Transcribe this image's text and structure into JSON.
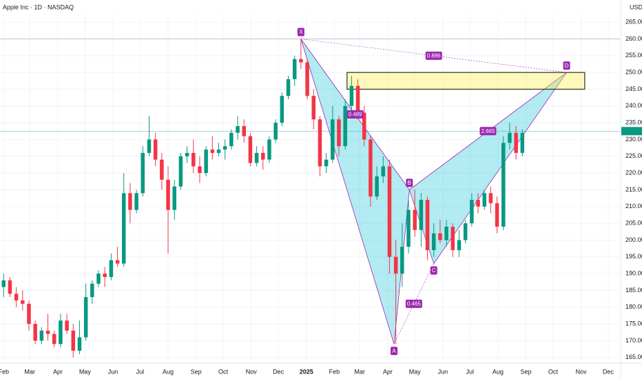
{
  "chart_data": {
    "type": "candlestick",
    "title": "Apple Inc · 1D · NASDAQ",
    "currency": "USD",
    "up_color": "#089981",
    "down_color": "#f23645",
    "grid": true,
    "xlim": [
      -4,
      682
    ],
    "xticks": [
      {
        "value": 0,
        "label": "Feb"
      },
      {
        "value": 29,
        "label": "Mar"
      },
      {
        "value": 60,
        "label": "Apr"
      },
      {
        "value": 90,
        "label": "May"
      },
      {
        "value": 121,
        "label": "Jun"
      },
      {
        "value": 151,
        "label": "Jul"
      },
      {
        "value": 182,
        "label": "Aug"
      },
      {
        "value": 213,
        "label": "Sep"
      },
      {
        "value": 243,
        "label": "Oct"
      },
      {
        "value": 274,
        "label": "Nov"
      },
      {
        "value": 304,
        "label": "Dec"
      },
      {
        "value": 335,
        "label": "2025"
      },
      {
        "value": 366,
        "label": "Feb"
      },
      {
        "value": 394,
        "label": "Mar"
      },
      {
        "value": 425,
        "label": "Apr"
      },
      {
        "value": 455,
        "label": "May"
      },
      {
        "value": 486,
        "label": "Jun"
      },
      {
        "value": 516,
        "label": "Jul"
      },
      {
        "value": 547,
        "label": "Aug"
      },
      {
        "value": 578,
        "label": "Sep"
      },
      {
        "value": 608,
        "label": "Oct"
      },
      {
        "value": 639,
        "label": "Nov"
      },
      {
        "value": 669,
        "label": "Dec"
      }
    ],
    "ylim": [
      163.5,
      267.5
    ],
    "yticks": [
      {
        "value": 165,
        "label": "165.00"
      },
      {
        "value": 170,
        "label": "170.00"
      },
      {
        "value": 175,
        "label": "175.00"
      },
      {
        "value": 180,
        "label": "180.00"
      },
      {
        "value": 185,
        "label": "185.00"
      },
      {
        "value": 190,
        "label": "190.00"
      },
      {
        "value": 195,
        "label": "195.00"
      },
      {
        "value": 200,
        "label": "200.00"
      },
      {
        "value": 205,
        "label": "205.00"
      },
      {
        "value": 210,
        "label": "210.00"
      },
      {
        "value": 215,
        "label": "215.00"
      },
      {
        "value": 220,
        "label": "220.00"
      },
      {
        "value": 225,
        "label": "225.00"
      },
      {
        "value": 230,
        "label": "230.00"
      },
      {
        "value": 235,
        "label": "235.00"
      },
      {
        "value": 240,
        "label": "240.00"
      },
      {
        "value": 245,
        "label": "245.00"
      },
      {
        "value": 250,
        "label": "250.00"
      },
      {
        "value": 255,
        "label": "255.00"
      },
      {
        "value": 260,
        "label": "260.00"
      },
      {
        "value": 265,
        "label": "265.00"
      }
    ],
    "x": [
      0,
      7,
      14,
      21,
      28,
      35,
      42,
      49,
      56,
      63,
      70,
      77,
      84,
      91,
      98,
      105,
      112,
      119,
      126,
      133,
      140,
      147,
      154,
      161,
      168,
      175,
      182,
      189,
      196,
      203,
      210,
      217,
      224,
      231,
      238,
      245,
      252,
      259,
      266,
      273,
      280,
      287,
      294,
      301,
      308,
      315,
      322,
      329,
      336,
      343,
      350,
      357,
      364,
      371,
      378,
      385,
      392,
      399,
      406,
      413,
      420,
      427,
      434,
      441,
      448,
      455,
      462,
      469,
      476,
      483,
      490,
      497,
      504,
      511,
      518,
      525,
      532,
      539,
      546,
      553,
      560,
      567,
      574
    ],
    "open": [
      186,
      188,
      184,
      182,
      181,
      175,
      170,
      173,
      172,
      169,
      176,
      173,
      167,
      171,
      183,
      187,
      190,
      189,
      194,
      193,
      214,
      209,
      214,
      226,
      230,
      224,
      218,
      209,
      216,
      225,
      226,
      222,
      220,
      227,
      226,
      227,
      228,
      232,
      234,
      231,
      223,
      226,
      224,
      230,
      235,
      243,
      248,
      254,
      253,
      243,
      236,
      222,
      224,
      236,
      228,
      240,
      246,
      238,
      230,
      213,
      219,
      222,
      195,
      190,
      198,
      209,
      203,
      212,
      197,
      202,
      200,
      204,
      197,
      200,
      205,
      212,
      210,
      214,
      211,
      204,
      229,
      232,
      226
    ],
    "high": [
      190,
      189,
      186,
      185,
      182,
      176,
      174,
      178,
      173,
      178,
      178,
      175,
      176,
      187,
      188,
      191,
      192,
      196,
      198,
      220,
      217,
      215,
      228,
      237,
      232,
      226,
      222,
      218,
      226,
      228,
      230,
      225,
      228,
      231,
      229,
      230,
      233,
      237,
      236,
      232,
      228,
      228,
      231,
      236,
      244,
      249,
      255,
      260,
      254,
      245,
      237,
      226,
      240,
      237,
      242,
      249,
      248,
      240,
      231,
      222,
      225,
      224,
      200,
      205,
      212,
      215,
      214,
      213,
      205,
      206,
      206,
      205,
      203,
      206,
      214,
      214,
      215,
      216,
      213,
      231,
      235,
      234,
      233
    ],
    "low": [
      183,
      183,
      180,
      179,
      173,
      169,
      169,
      170,
      168,
      168,
      172,
      165,
      166,
      170,
      181,
      186,
      186,
      188,
      192,
      192,
      205,
      208,
      213,
      225,
      222,
      215,
      196,
      206,
      215,
      223,
      220,
      217,
      219,
      224,
      225,
      224,
      227,
      230,
      229,
      222,
      222,
      221,
      223,
      229,
      234,
      242,
      246,
      251,
      242,
      233,
      219,
      220,
      223,
      225,
      227,
      238,
      236,
      228,
      210,
      212,
      217,
      190,
      169,
      186,
      196,
      201,
      198,
      194,
      195,
      199,
      198,
      195,
      195,
      199,
      204,
      208,
      209,
      208,
      202,
      203,
      227,
      224,
      225
    ],
    "close": [
      188,
      184,
      182,
      181,
      175,
      170,
      173,
      172,
      169,
      176,
      173,
      167,
      171,
      183,
      187,
      190,
      189,
      194,
      193,
      214,
      209,
      214,
      226,
      230,
      224,
      218,
      209,
      216,
      225,
      226,
      222,
      220,
      227,
      226,
      227,
      228,
      232,
      234,
      231,
      223,
      226,
      224,
      230,
      235,
      243,
      248,
      254,
      253,
      243,
      236,
      222,
      224,
      236,
      228,
      240,
      246,
      238,
      230,
      213,
      219,
      222,
      195,
      190,
      198,
      209,
      203,
      212,
      197,
      202,
      200,
      204,
      197,
      200,
      205,
      212,
      210,
      214,
      211,
      204,
      229,
      232,
      226,
      232
    ],
    "last_price": 232.5,
    "pattern": {
      "points": [
        {
          "label": "X",
          "x": 329,
          "y": 260
        },
        {
          "label": "A",
          "x": 432,
          "y": 169
        },
        {
          "label": "B",
          "x": 449,
          "y": 215
        },
        {
          "label": "C",
          "x": 476,
          "y": 193
        },
        {
          "label": "D",
          "x": 623,
          "y": 250
        }
      ],
      "ratios": [
        0.886,
        0.489,
        0.465,
        2.665
      ],
      "zone": {
        "xlim": [
          380,
          643
        ],
        "ylim": [
          245,
          250
        ]
      }
    }
  }
}
